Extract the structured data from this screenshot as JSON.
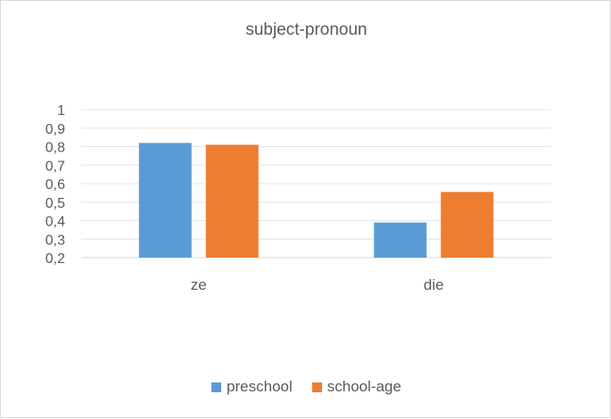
{
  "chart_data": {
    "type": "bar",
    "title": "subject-pronoun",
    "categories": [
      "ze",
      "die"
    ],
    "series": [
      {
        "name": "preschool",
        "color": "#5b9bd5",
        "values": [
          0.82,
          0.39
        ]
      },
      {
        "name": "school-age",
        "color": "#ed7d31",
        "values": [
          0.81,
          0.555
        ]
      }
    ],
    "ylim": [
      0.2,
      1.0
    ],
    "yticks": [
      "0,2",
      "0,3",
      "0,4",
      "0,5",
      "0,6",
      "0,7",
      "0,8",
      "0,9",
      "1"
    ],
    "xlabel": "",
    "ylabel": "",
    "grid": true,
    "legend": "bottom"
  }
}
